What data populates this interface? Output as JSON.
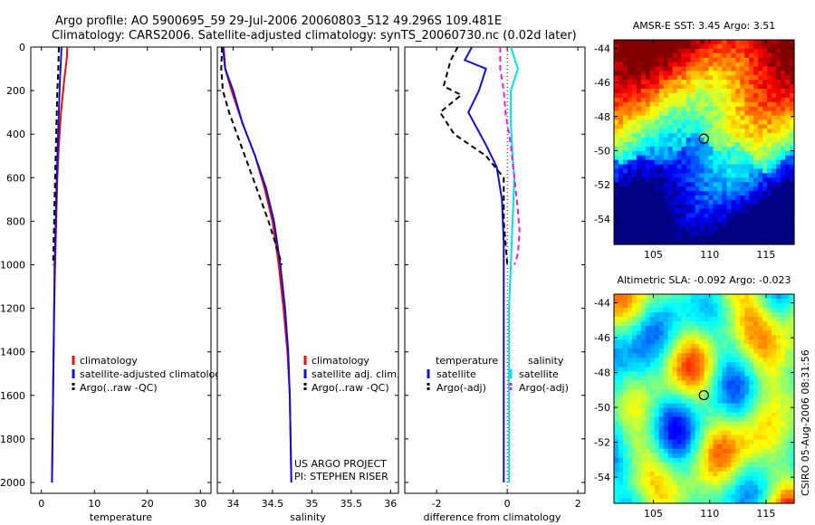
{
  "header": {
    "title_line1": "Argo profile: AO 5900695_59 29-Jul-2006 20060803_512 49.296S 109.481E",
    "title_line2": "Climatology: CARS2006. Satellite-adjusted climatology: synTS_20060730.nc (0.02d later)"
  },
  "colors": {
    "climatology": "#e01010",
    "satellite": "#1010d0",
    "argo": "#000000",
    "salinity_satellite": "#00e0e0",
    "salinity_argo": "#e020e0"
  },
  "chart_data": [
    {
      "type": "line",
      "panel": "temperature",
      "xlabel": "temperature",
      "ylim": [
        2050,
        0
      ],
      "xlim": [
        -2,
        32
      ],
      "yticks": [
        "0",
        "200",
        "400",
        "600",
        "800",
        "1000",
        "1200",
        "1400",
        "1600",
        "1800",
        "2000"
      ],
      "xticks": [
        "0",
        "10",
        "20",
        "30"
      ],
      "series": [
        {
          "name": "climatology",
          "style": "solid",
          "color": "#e01010",
          "x": [
            4.9,
            4.8,
            4.3,
            3.7,
            3.3,
            3.0,
            2.8,
            2.6,
            2.4,
            2.3,
            2.2,
            2.1,
            2.0
          ],
          "y": [
            0,
            50,
            150,
            300,
            450,
            600,
            800,
            1000,
            1200,
            1400,
            1600,
            1800,
            2000
          ]
        },
        {
          "name": "satellite-adjusted climatology",
          "style": "solid",
          "color": "#1010d0",
          "x": [
            3.8,
            3.7,
            3.5,
            3.3,
            3.1,
            2.9,
            2.7,
            2.5,
            2.4,
            2.3,
            2.2,
            2.1,
            2.0
          ],
          "y": [
            0,
            50,
            150,
            300,
            450,
            600,
            800,
            1000,
            1200,
            1400,
            1600,
            1800,
            2000
          ]
        },
        {
          "name": "Argo(..raw -QC)",
          "style": "dashed",
          "color": "#000000",
          "x": [
            3.3,
            3.2,
            3.0,
            2.9,
            2.8,
            2.7,
            2.6,
            2.5,
            2.4,
            2.3,
            2.2
          ],
          "y": [
            0,
            100,
            200,
            300,
            400,
            500,
            600,
            700,
            800,
            900,
            1000
          ]
        }
      ],
      "legend": [
        "climatology",
        "satellite-adjusted climatology",
        "Argo(..raw -QC)"
      ]
    },
    {
      "type": "line",
      "panel": "salinity",
      "xlabel": "salinity",
      "ylim": [
        2050,
        0
      ],
      "xlim": [
        33.8,
        36.1
      ],
      "xticks": [
        "34",
        "34.5",
        "35",
        "35.5",
        "36"
      ],
      "series": [
        {
          "name": "climatology",
          "style": "solid",
          "color": "#e01010",
          "x": [
            33.88,
            33.9,
            33.98,
            34.12,
            34.28,
            34.4,
            34.5,
            34.58,
            34.64,
            34.69,
            34.72,
            34.73,
            34.74
          ],
          "y": [
            0,
            100,
            200,
            350,
            500,
            650,
            800,
            1000,
            1200,
            1400,
            1600,
            1800,
            2000
          ]
        },
        {
          "name": "satellite adj. clim.",
          "style": "solid",
          "color": "#1010d0",
          "x": [
            33.87,
            33.9,
            34.0,
            34.12,
            34.28,
            34.42,
            34.52,
            34.6,
            34.66,
            34.7,
            34.72,
            34.73,
            34.74
          ],
          "y": [
            0,
            100,
            200,
            350,
            500,
            650,
            800,
            1000,
            1200,
            1400,
            1600,
            1800,
            2000
          ]
        },
        {
          "name": "Argo(..raw -QC)",
          "style": "dashed",
          "color": "#000000",
          "x": [
            33.86,
            33.85,
            33.87,
            33.95,
            34.05,
            34.15,
            34.3,
            34.45,
            34.58,
            34.62
          ],
          "y": [
            0,
            100,
            200,
            300,
            400,
            500,
            650,
            800,
            950,
            1000
          ]
        }
      ],
      "legend": [
        "climatology",
        "satellite adj. clim.",
        "Argo(..raw -QC)"
      ],
      "annotations": [
        "US ARGO PROJECT",
        "PI: STEPHEN RISER"
      ]
    },
    {
      "type": "line",
      "panel": "difference",
      "xlabel": "difference from climatology",
      "ylim": [
        2050,
        0
      ],
      "xlim": [
        -2.9,
        2.2
      ],
      "xticks": [
        "-2",
        "0",
        "2"
      ],
      "series": [
        {
          "name": "temperature satellite",
          "style": "solid",
          "color": "#1010d0",
          "x": [
            -1.0,
            -1.2,
            -0.6,
            -0.8,
            -1.1,
            -0.6,
            -0.3,
            -0.15,
            -0.1,
            -0.1,
            -0.1,
            -0.1,
            -0.1
          ],
          "y": [
            0,
            60,
            100,
            200,
            300,
            450,
            550,
            700,
            900,
            1200,
            1500,
            1800,
            2000
          ]
        },
        {
          "name": "temperature Argo(-adj)",
          "style": "dashed",
          "color": "#000000",
          "x": [
            -1.4,
            -1.6,
            -1.8,
            -1.3,
            -1.9,
            -1.5,
            -0.6,
            -0.1,
            -0.1,
            0.0
          ],
          "y": [
            0,
            60,
            180,
            220,
            300,
            400,
            500,
            600,
            800,
            1000
          ]
        },
        {
          "name": "salinity satellite",
          "style": "solid",
          "color": "#00e0e0",
          "x": [
            0.1,
            0.3,
            0.1,
            0.1,
            0.15,
            0.2,
            0.15,
            0.1,
            0.05,
            0.05,
            0.05,
            0.05
          ],
          "y": [
            0,
            100,
            200,
            350,
            500,
            600,
            800,
            1000,
            1200,
            1500,
            1800,
            2000
          ]
        },
        {
          "name": "salinity Argo(-adj)",
          "style": "dashed",
          "color": "#e020e0",
          "x": [
            -0.2,
            -0.2,
            -0.1,
            -0.05,
            0.1,
            0.2,
            0.3,
            0.35,
            0.3,
            0.2
          ],
          "y": [
            0,
            100,
            200,
            300,
            450,
            600,
            750,
            850,
            950,
            1000
          ]
        }
      ],
      "legend_groups": [
        {
          "header": "temperature",
          "items": [
            "satellite",
            "Argo(-adj)"
          ]
        },
        {
          "header": "salinity",
          "items": [
            "satellite",
            "Argo(-adj)"
          ]
        }
      ]
    },
    {
      "type": "heatmap",
      "panel": "sst",
      "title": "AMSR-E SST: 3.45  Argo: 3.51",
      "xticks": [
        "105",
        "110",
        "115"
      ],
      "yticks": [
        "-44",
        "-46",
        "-48",
        "-50",
        "-52",
        "-54"
      ],
      "xlim": [
        101.5,
        117.5
      ],
      "ylim": [
        -55.5,
        -43.5
      ],
      "profile_marker": {
        "lon": 109.481,
        "lat": -49.296
      }
    },
    {
      "type": "heatmap",
      "panel": "sla",
      "title": "Altimetric SLA: -0.092  Argo: -0.023",
      "xticks": [
        "105",
        "110",
        "115"
      ],
      "yticks": [
        "-44",
        "-46",
        "-48",
        "-50",
        "-52",
        "-54"
      ],
      "xlim": [
        101.5,
        117.5
      ],
      "ylim": [
        -55.5,
        -43.5
      ],
      "profile_marker": {
        "lon": 109.481,
        "lat": -49.296
      }
    }
  ],
  "credit": "CSIRO 05-Aug-2006 08:31:56"
}
